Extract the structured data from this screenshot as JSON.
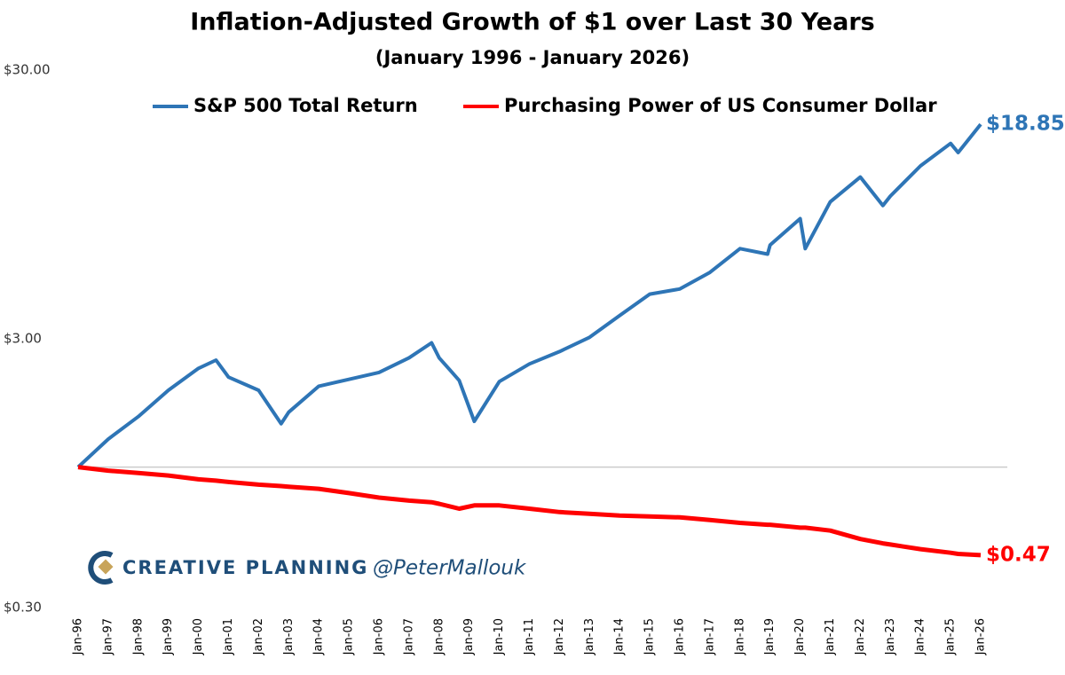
{
  "chart_data": {
    "type": "line",
    "title": "Inflation-Adjusted Growth of $1 over Last 30 Years",
    "subtitle": "(January 1996 - January 2026)",
    "log_scale": true,
    "ylim": [
      0.3,
      30
    ],
    "yticks": [
      {
        "value": 0.3,
        "label": "$0.30"
      },
      {
        "value": 3,
        "label": "$3.00"
      },
      {
        "value": 30,
        "label": "$30.00"
      }
    ],
    "xlim": [
      "1996-01",
      "2026-01"
    ],
    "xticks": [
      {
        "value": "1996-01",
        "label": "Jan-96"
      },
      {
        "value": "1997-01",
        "label": "Jan-97"
      },
      {
        "value": "1998-01",
        "label": "Jan-98"
      },
      {
        "value": "1999-01",
        "label": "Jan-99"
      },
      {
        "value": "2000-01",
        "label": "Jan-00"
      },
      {
        "value": "2001-01",
        "label": "Jan-01"
      },
      {
        "value": "2002-01",
        "label": "Jan-02"
      },
      {
        "value": "2003-01",
        "label": "Jan-03"
      },
      {
        "value": "2004-01",
        "label": "Jan-04"
      },
      {
        "value": "2005-01",
        "label": "Jan-05"
      },
      {
        "value": "2006-01",
        "label": "Jan-06"
      },
      {
        "value": "2007-01",
        "label": "Jan-07"
      },
      {
        "value": "2008-01",
        "label": "Jan-08"
      },
      {
        "value": "2009-01",
        "label": "Jan-09"
      },
      {
        "value": "2010-01",
        "label": "Jan-10"
      },
      {
        "value": "2011-01",
        "label": "Jan-11"
      },
      {
        "value": "2012-01",
        "label": "Jan-12"
      },
      {
        "value": "2013-01",
        "label": "Jan-13"
      },
      {
        "value": "2014-01",
        "label": "Jan-14"
      },
      {
        "value": "2015-01",
        "label": "Jan-15"
      },
      {
        "value": "2016-01",
        "label": "Jan-16"
      },
      {
        "value": "2017-01",
        "label": "Jan-17"
      },
      {
        "value": "2018-01",
        "label": "Jan-18"
      },
      {
        "value": "2019-01",
        "label": "Jan-19"
      },
      {
        "value": "2020-01",
        "label": "Jan-20"
      },
      {
        "value": "2021-01",
        "label": "Jan-21"
      },
      {
        "value": "2022-01",
        "label": "Jan-22"
      },
      {
        "value": "2023-01",
        "label": "Jan-23"
      },
      {
        "value": "2024-01",
        "label": "Jan-24"
      },
      {
        "value": "2025-01",
        "label": "Jan-25"
      },
      {
        "value": "2026-01",
        "label": "Jan-26"
      }
    ],
    "hline": 1,
    "legend": "top",
    "x": [
      "1996-01",
      "1997-01",
      "1998-01",
      "1999-01",
      "2000-01",
      "2000-08",
      "2001-01",
      "2002-01",
      "2002-10",
      "2003-01",
      "2004-01",
      "2005-01",
      "2006-01",
      "2007-01",
      "2007-10",
      "2008-01",
      "2008-09",
      "2009-03",
      "2010-01",
      "2011-01",
      "2012-01",
      "2013-01",
      "2014-01",
      "2015-01",
      "2016-01",
      "2017-01",
      "2018-01",
      "2018-12",
      "2019-01",
      "2020-01",
      "2020-03",
      "2021-01",
      "2022-01",
      "2022-10",
      "2023-01",
      "2024-01",
      "2025-01",
      "2025-04",
      "2026-01"
    ],
    "series": [
      {
        "name": "S&P 500 Total Return",
        "color": "#2e75b6",
        "values": [
          1.0,
          1.27,
          1.54,
          1.93,
          2.33,
          2.5,
          2.16,
          1.93,
          1.45,
          1.6,
          2.0,
          2.12,
          2.25,
          2.55,
          2.9,
          2.55,
          2.1,
          1.48,
          2.08,
          2.42,
          2.69,
          3.04,
          3.66,
          4.4,
          4.6,
          5.3,
          6.5,
          6.2,
          6.7,
          8.4,
          6.5,
          9.7,
          12.0,
          9.4,
          10.2,
          13.2,
          16.0,
          14.8,
          18.85
        ],
        "value_labels": [
          null,
          null,
          null,
          null,
          null,
          null,
          null,
          null,
          null,
          null,
          null,
          null,
          null,
          null,
          null,
          null,
          null,
          null,
          null,
          null,
          null,
          null,
          null,
          null,
          null,
          null,
          null,
          null,
          null,
          null,
          null,
          null,
          null,
          null,
          null,
          null,
          null,
          null,
          "$18.85"
        ]
      },
      {
        "name": "Purchasing Power of US Consumer Dollar",
        "color": "#ff0000",
        "values": [
          1.0,
          0.97,
          0.95,
          0.93,
          0.9,
          0.89,
          0.88,
          0.86,
          0.85,
          0.845,
          0.83,
          0.8,
          0.77,
          0.75,
          0.74,
          0.73,
          0.7,
          0.72,
          0.72,
          0.7,
          0.68,
          0.67,
          0.66,
          0.655,
          0.65,
          0.635,
          0.62,
          0.61,
          0.61,
          0.595,
          0.595,
          0.58,
          0.54,
          0.52,
          0.515,
          0.495,
          0.48,
          0.475,
          0.47
        ],
        "value_labels": [
          null,
          null,
          null,
          null,
          null,
          null,
          null,
          null,
          null,
          null,
          null,
          null,
          null,
          null,
          null,
          null,
          null,
          null,
          null,
          null,
          null,
          null,
          null,
          null,
          null,
          null,
          null,
          null,
          null,
          null,
          null,
          null,
          null,
          null,
          null,
          null,
          null,
          null,
          "$0.47"
        ]
      }
    ],
    "watermark": {
      "brand": "CREATIVE PLANNING",
      "handle": "@PeterMallouk"
    }
  }
}
